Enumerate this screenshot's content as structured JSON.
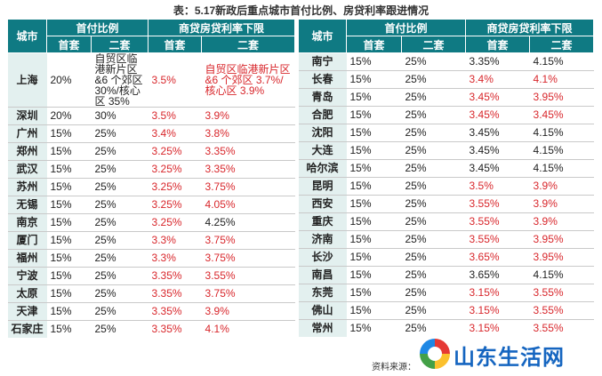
{
  "title": "表：5.17新政后重点城市首付比例、房贷利率跟进情况",
  "headers": {
    "city": "城市",
    "down_payment": "首付比例",
    "rate_floor": "商贷房贷利率下限",
    "first": "首套",
    "second": "二套"
  },
  "colors": {
    "header_bg": "#0f7a83",
    "city_bg": "#e3f0ef",
    "red": "#d8262b"
  },
  "left_rows": [
    {
      "city": "上海",
      "dp1": "20%",
      "dp2": "自贸区临港新片区&6 个郊区 30%/核心区 35%",
      "r1": "3.5%",
      "r2": "自贸区临港新片区&6 个郊区 3.7%/核心区 3.9%",
      "r1_red": true,
      "r2_red": true
    },
    {
      "city": "深圳",
      "dp1": "20%",
      "dp2": "30%",
      "r1": "3.5%",
      "r2": "3.9%",
      "r1_red": true,
      "r2_red": true
    },
    {
      "city": "广州",
      "dp1": "15%",
      "dp2": "25%",
      "r1": "3.4%",
      "r2": "3.8%",
      "r1_red": true,
      "r2_red": true
    },
    {
      "city": "郑州",
      "dp1": "15%",
      "dp2": "25%",
      "r1": "3.25%",
      "r2": "3.35%",
      "r1_red": true,
      "r2_red": true
    },
    {
      "city": "武汉",
      "dp1": "15%",
      "dp2": "25%",
      "r1": "3.25%",
      "r2": "3.35%",
      "r1_red": true,
      "r2_red": true
    },
    {
      "city": "苏州",
      "dp1": "15%",
      "dp2": "25%",
      "r1": "3.25%",
      "r2": "3.75%",
      "r1_red": true,
      "r2_red": true
    },
    {
      "city": "无锡",
      "dp1": "15%",
      "dp2": "25%",
      "r1": "3.25%",
      "r2": "4.05%",
      "r1_red": true,
      "r2_red": true
    },
    {
      "city": "南京",
      "dp1": "15%",
      "dp2": "25%",
      "r1": "3.25%",
      "r2": "4.25%",
      "r1_red": true,
      "r2_red": false
    },
    {
      "city": "厦门",
      "dp1": "15%",
      "dp2": "25%",
      "r1": "3.3%",
      "r2": "3.75%",
      "r1_red": true,
      "r2_red": true
    },
    {
      "city": "福州",
      "dp1": "15%",
      "dp2": "25%",
      "r1": "3.3%",
      "r2": "3.75%",
      "r1_red": true,
      "r2_red": true
    },
    {
      "city": "宁波",
      "dp1": "15%",
      "dp2": "25%",
      "r1": "3.35%",
      "r2": "3.55%",
      "r1_red": true,
      "r2_red": true
    },
    {
      "city": "太原",
      "dp1": "15%",
      "dp2": "25%",
      "r1": "3.35%",
      "r2": "3.75%",
      "r1_red": true,
      "r2_red": true
    },
    {
      "city": "天津",
      "dp1": "15%",
      "dp2": "25%",
      "r1": "3.35%",
      "r2": "3.9%",
      "r1_red": true,
      "r2_red": true
    },
    {
      "city": "石家庄",
      "dp1": "15%",
      "dp2": "25%",
      "r1": "3.35%",
      "r2": "4.1%",
      "r1_red": true,
      "r2_red": true
    }
  ],
  "right_rows": [
    {
      "city": "南宁",
      "dp1": "15%",
      "dp2": "25%",
      "r1": "3.35%",
      "r2": "4.15%",
      "r1_red": false,
      "r2_red": false
    },
    {
      "city": "长春",
      "dp1": "15%",
      "dp2": "25%",
      "r1": "3.4%",
      "r2": "4.1%",
      "r1_red": true,
      "r2_red": true
    },
    {
      "city": "青岛",
      "dp1": "15%",
      "dp2": "25%",
      "r1": "3.45%",
      "r2": "3.95%",
      "r1_red": true,
      "r2_red": true
    },
    {
      "city": "合肥",
      "dp1": "15%",
      "dp2": "25%",
      "r1": "3.45%",
      "r2": "3.45%",
      "r1_red": true,
      "r2_red": true
    },
    {
      "city": "沈阳",
      "dp1": "15%",
      "dp2": "25%",
      "r1": "3.45%",
      "r2": "4.15%",
      "r1_red": false,
      "r2_red": false
    },
    {
      "city": "大连",
      "dp1": "15%",
      "dp2": "25%",
      "r1": "3.45%",
      "r2": "4.15%",
      "r1_red": false,
      "r2_red": false
    },
    {
      "city": "哈尔滨",
      "dp1": "15%",
      "dp2": "25%",
      "r1": "3.45%",
      "r2": "4.15%",
      "r1_red": false,
      "r2_red": false
    },
    {
      "city": "昆明",
      "dp1": "15%",
      "dp2": "25%",
      "r1": "3.5%",
      "r2": "3.9%",
      "r1_red": true,
      "r2_red": true
    },
    {
      "city": "西安",
      "dp1": "15%",
      "dp2": "25%",
      "r1": "3.55%",
      "r2": "3.9%",
      "r1_red": true,
      "r2_red": true
    },
    {
      "city": "重庆",
      "dp1": "15%",
      "dp2": "25%",
      "r1": "3.55%",
      "r2": "3.9%",
      "r1_red": true,
      "r2_red": true
    },
    {
      "city": "济南",
      "dp1": "15%",
      "dp2": "25%",
      "r1": "3.55%",
      "r2": "3.95%",
      "r1_red": true,
      "r2_red": true
    },
    {
      "city": "长沙",
      "dp1": "15%",
      "dp2": "25%",
      "r1": "3.65%",
      "r2": "3.95%",
      "r1_red": true,
      "r2_red": true
    },
    {
      "city": "南昌",
      "dp1": "15%",
      "dp2": "25%",
      "r1": "3.65%",
      "r2": "4.15%",
      "r1_red": false,
      "r2_red": false
    },
    {
      "city": "东莞",
      "dp1": "15%",
      "dp2": "25%",
      "r1": "3.15%",
      "r2": "3.55%",
      "r1_red": true,
      "r2_red": true
    },
    {
      "city": "佛山",
      "dp1": "15%",
      "dp2": "25%",
      "r1": "3.15%",
      "r2": "3.55%",
      "r1_red": true,
      "r2_red": true
    },
    {
      "city": "常州",
      "dp1": "15%",
      "dp2": "25%",
      "r1": "3.15%",
      "r2": "3.55%",
      "r1_red": true,
      "r2_red": true
    }
  ],
  "source": "资料来源：",
  "logo_text": "山东生活网"
}
